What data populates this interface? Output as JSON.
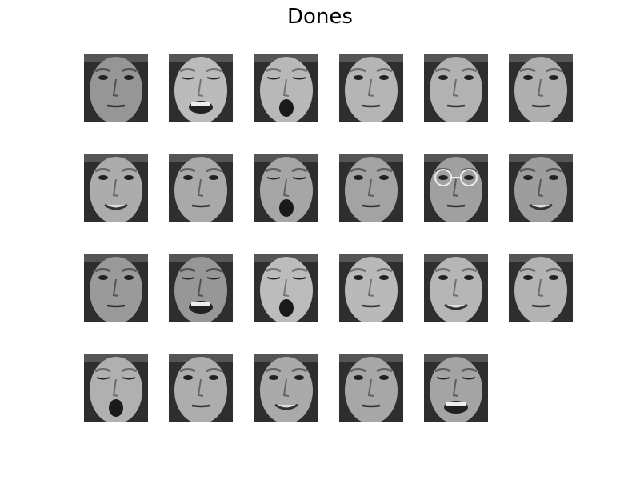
{
  "title": "Dones",
  "faces": [
    {
      "expression": "neutral"
    },
    {
      "expression": "grimace"
    },
    {
      "expression": "mouth-open"
    },
    {
      "expression": "neutral"
    },
    {
      "expression": "neutral"
    },
    {
      "expression": "neutral"
    },
    {
      "expression": "smile"
    },
    {
      "expression": "neutral"
    },
    {
      "expression": "mouth-open"
    },
    {
      "expression": "neutral"
    },
    {
      "expression": "glasses"
    },
    {
      "expression": "smile"
    },
    {
      "expression": "neutral"
    },
    {
      "expression": "laugh"
    },
    {
      "expression": "mouth-open"
    },
    {
      "expression": "neutral"
    },
    {
      "expression": "smile"
    },
    {
      "expression": "neutral"
    },
    {
      "expression": "mouth-open"
    },
    {
      "expression": "neutral"
    },
    {
      "expression": "smile"
    },
    {
      "expression": "neutral"
    },
    {
      "expression": "laugh"
    }
  ]
}
